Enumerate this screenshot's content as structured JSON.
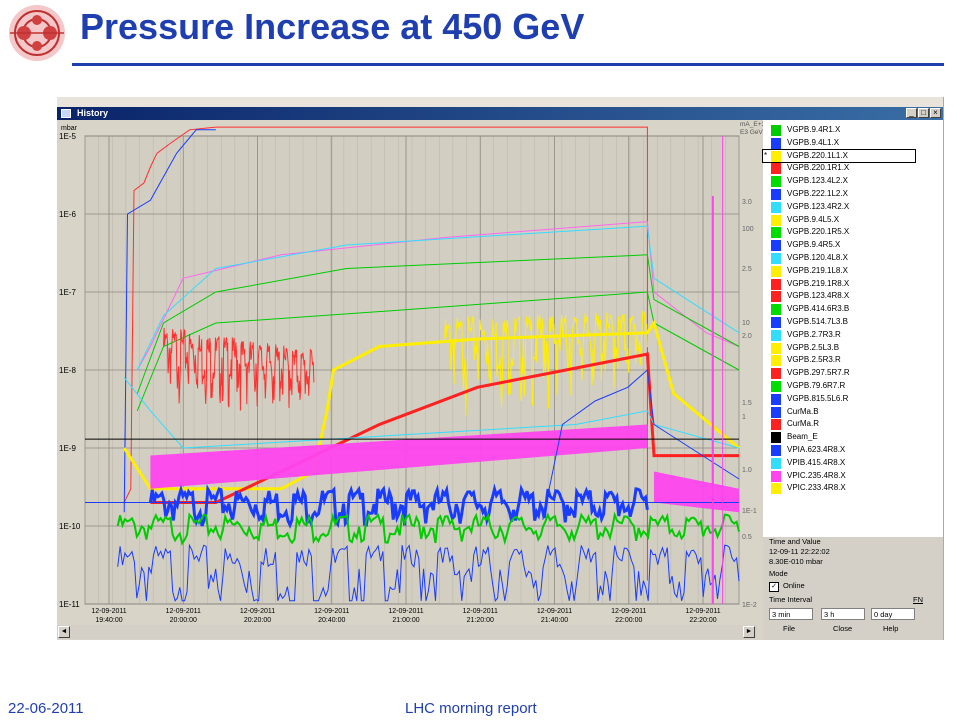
{
  "slide": {
    "title": "Pressure Increase at 450 GeV",
    "footer_date": "22-06-2011",
    "footer_center": "LHC morning report"
  },
  "window": {
    "title": "History",
    "buttons": [
      "_",
      "□",
      "×"
    ]
  },
  "chart_data": {
    "type": "line",
    "y_left_unit": "mbar",
    "y_left_scale": "log",
    "y_left_ticks": [
      "1E-5",
      "1E-6",
      "1E-7",
      "1E-8",
      "1E-9",
      "1E-10",
      "1E-11"
    ],
    "y_left_range": [
      1e-11,
      1e-05
    ],
    "y_right_units": [
      "mA_E+3",
      "E3 GeV"
    ],
    "y_right_ticks_1": [
      "3.0",
      "2.5",
      "2.0",
      "1.5",
      "1.0",
      "0.5"
    ],
    "y_right_ticks_2": [
      "100",
      "10",
      "1",
      "1E-1",
      "1E-2"
    ],
    "x_ticks": [
      {
        "date": "12-09-2011",
        "time": "19:40:00"
      },
      {
        "date": "12-09-2011",
        "time": "20:00:00"
      },
      {
        "date": "12-09-2011",
        "time": "20:20:00"
      },
      {
        "date": "12-09-2011",
        "time": "20:40:00"
      },
      {
        "date": "12-09-2011",
        "time": "21:00:00"
      },
      {
        "date": "12-09-2011",
        "time": "21:20:00"
      },
      {
        "date": "12-09-2011",
        "time": "21:40:00"
      },
      {
        "date": "12-09-2011",
        "time": "22:00:00"
      },
      {
        "date": "12-09-2011",
        "time": "22:20:00"
      }
    ],
    "grid": true
  },
  "legend": {
    "items": [
      {
        "label": "VGPB.9.4R1.X",
        "color": "#00cc00"
      },
      {
        "label": "VGPB.9.4L1.X",
        "color": "#1a3cff"
      },
      {
        "label": "VGPB.220.1L1.X",
        "color": "#ffee00",
        "selected": true
      },
      {
        "label": "VGPB.220.1R1.X",
        "color": "#ff2020"
      },
      {
        "label": "VGPB.123.4L2.X",
        "color": "#00dd00"
      },
      {
        "label": "VGPB.222.1L2.X",
        "color": "#1a3cff"
      },
      {
        "label": "VGPB.123.4R2.X",
        "color": "#33ddff"
      },
      {
        "label": "VGPB.9.4L5.X",
        "color": "#ffee00"
      },
      {
        "label": "VGPB.220.1R5.X",
        "color": "#00dd00"
      },
      {
        "label": "VGPB.9.4R5.X",
        "color": "#1a3cff"
      },
      {
        "label": "VGPB.120.4L8.X",
        "color": "#33ddff"
      },
      {
        "label": "VGPB.219.1L8.X",
        "color": "#ffee00"
      },
      {
        "label": "VGPB.219.1R8.X",
        "color": "#ff2020"
      },
      {
        "label": "VGPB.123.4R8.X",
        "color": "#ff2020"
      },
      {
        "label": "VGPB.414.6R3.B",
        "color": "#00dd00"
      },
      {
        "label": "VGPB.514.7L3.B",
        "color": "#1a3cff"
      },
      {
        "label": "VGPB.2.7R3.R",
        "color": "#33ddff"
      },
      {
        "label": "VGPB.2.5L3.B",
        "color": "#ffee00"
      },
      {
        "label": "VGPB.2.5R3.R",
        "color": "#ffee00"
      },
      {
        "label": "VGPB.297.5R7.R",
        "color": "#ff2020"
      },
      {
        "label": "VGPB.79.6R7.R",
        "color": "#00dd00"
      },
      {
        "label": "VGPB.815.5L6.R",
        "color": "#1a3cff"
      },
      {
        "label": "CurMa.B",
        "color": "#1a3cff"
      },
      {
        "label": "CurMa.R",
        "color": "#ff2020"
      },
      {
        "label": "Beam_E",
        "color": "#000000"
      },
      {
        "label": "VPIA.623.4R8.X",
        "color": "#1a3cff"
      },
      {
        "label": "VPIB.415.4R8.X",
        "color": "#33ddff"
      },
      {
        "label": "VPIC.235.4R8.X",
        "color": "#ff44ee"
      },
      {
        "label": "VPIC.233.4R8.X",
        "color": "#ffee00"
      }
    ]
  },
  "info": {
    "time_value_label": "Time and Value",
    "time_value": "12-09-11 22:22:02",
    "value": "8.30E-010 mbar",
    "mode_label": "Mode",
    "online_label": "Online",
    "time_interval_label": "Time Interval",
    "fn_label": "FN",
    "interval_1": "3 min",
    "interval_2": "3 h",
    "interval_3": "0 day",
    "menu_file": "File",
    "menu_close": "Close",
    "menu_help": "Help"
  }
}
